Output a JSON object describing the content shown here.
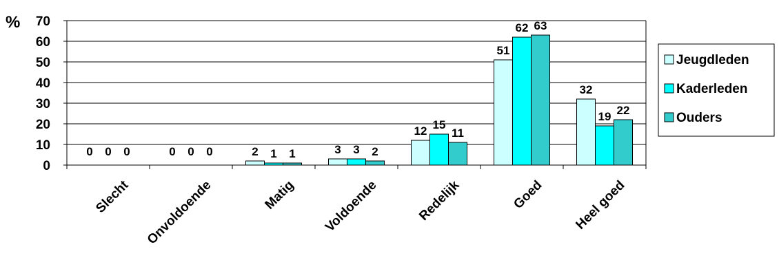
{
  "chart_data": {
    "type": "bar",
    "unit_label": "%",
    "categories": [
      "Slecht",
      "Onvoldoende",
      "Matig",
      "Voldoende",
      "Redelijk",
      "Goed",
      "Heel goed"
    ],
    "series": [
      {
        "name": "Jeugdleden",
        "color": "#ccffff",
        "values": [
          0,
          0,
          2,
          3,
          12,
          51,
          32
        ]
      },
      {
        "name": "Kaderleden",
        "color": "#00ffff",
        "values": [
          0,
          0,
          1,
          3,
          15,
          62,
          19
        ]
      },
      {
        "name": "Ouders",
        "color": "#33cccc",
        "values": [
          0,
          0,
          1,
          2,
          11,
          63,
          22
        ]
      }
    ],
    "yticks": [
      0,
      10,
      20,
      30,
      40,
      50,
      60,
      70
    ],
    "ylim": [
      0,
      70
    ],
    "grid": true,
    "legend": "right"
  }
}
